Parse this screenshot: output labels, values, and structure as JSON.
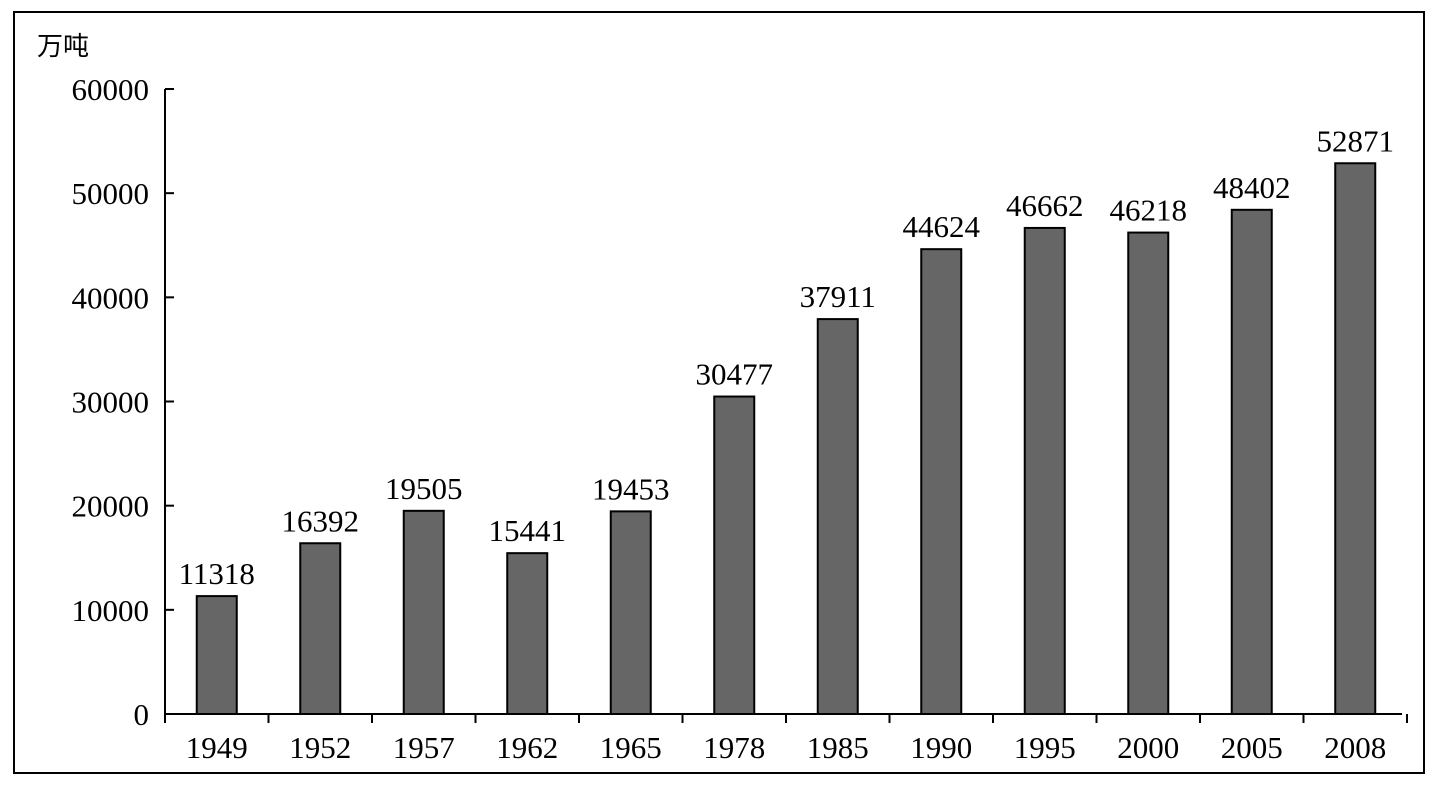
{
  "chart_data": {
    "type": "bar",
    "unit_label": "万吨",
    "categories": [
      "1949",
      "1952",
      "1957",
      "1962",
      "1965",
      "1978",
      "1985",
      "1990",
      "1995",
      "2000",
      "2005",
      "2008"
    ],
    "values": [
      11318,
      16392,
      19505,
      15441,
      19453,
      30477,
      37911,
      44624,
      46662,
      46218,
      48402,
      52871
    ],
    "yticks": [
      0,
      10000,
      20000,
      30000,
      40000,
      50000,
      60000
    ],
    "ylim": [
      0,
      60000
    ],
    "bar_color": "#666666",
    "grid": false,
    "legend": "none"
  }
}
